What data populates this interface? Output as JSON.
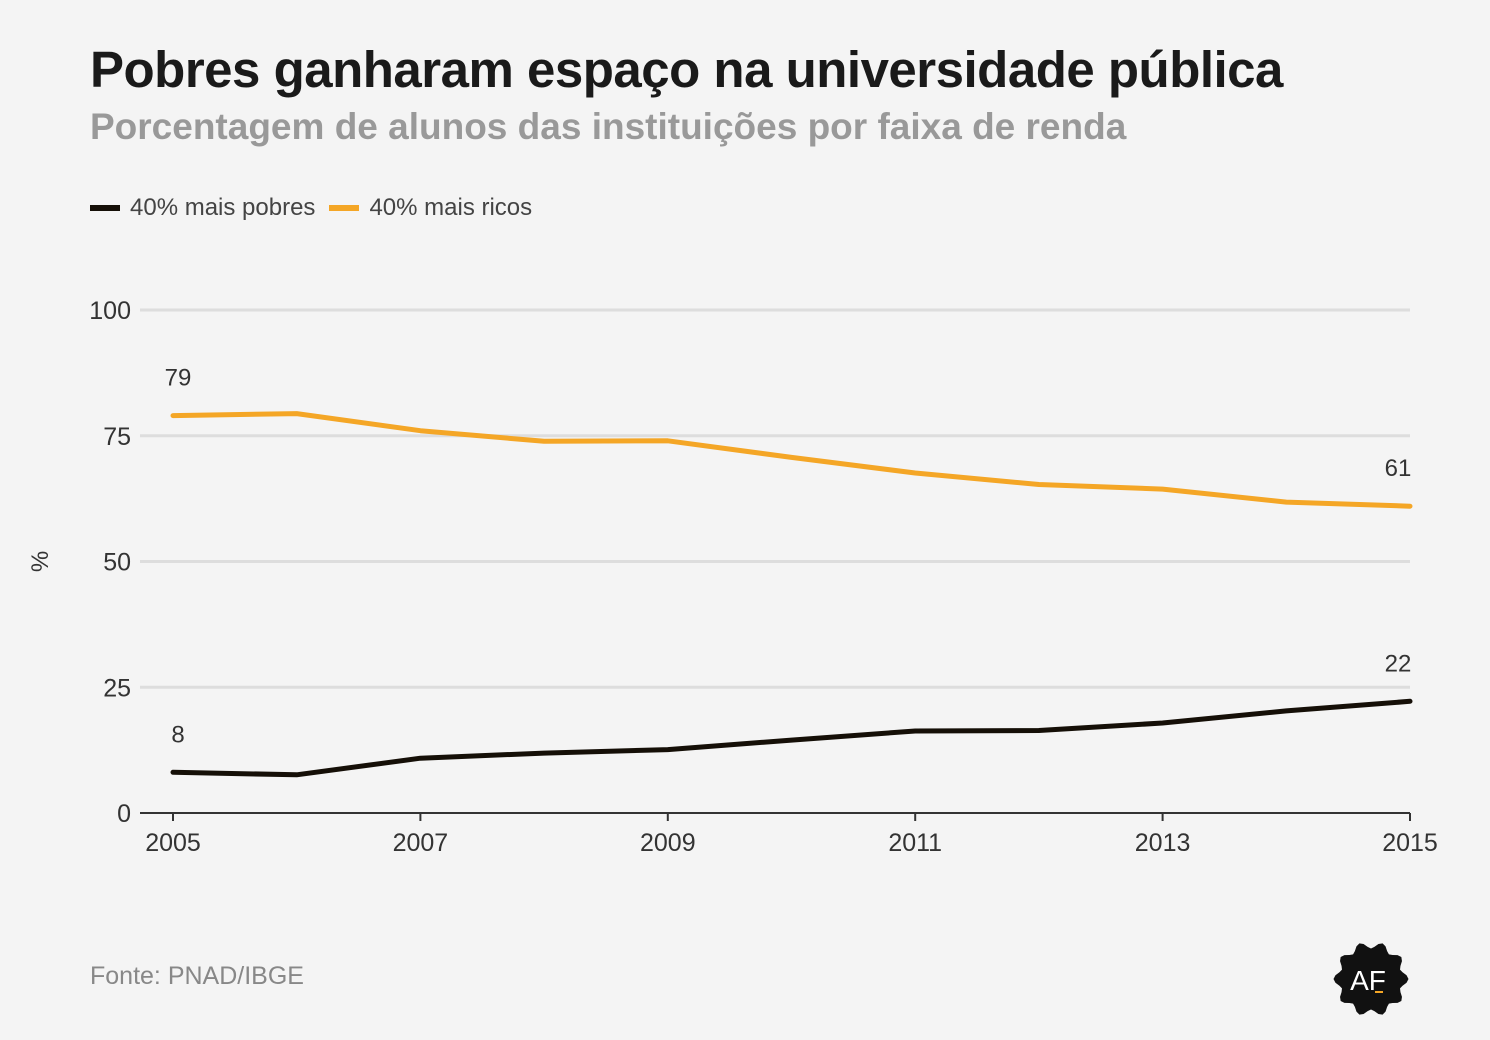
{
  "header": {
    "title": "Pobres ganharam espaço na universidade pública",
    "subtitle": "Porcentagem de alunos das instituições por faixa de renda"
  },
  "footer": {
    "source": "Fonte: PNAD/IBGE",
    "logo_text": "AF"
  },
  "colors": {
    "background": "#f4f4f4",
    "gridline": "#dddddd",
    "axis": "#333333"
  },
  "chart_data": {
    "type": "line",
    "title": "Pobres ganharam espaço na universidade pública",
    "subtitle": "Porcentagem de alunos das instituições por faixa de renda",
    "xlabel": "",
    "ylabel": "%",
    "x": [
      2005,
      2006,
      2007,
      2008,
      2009,
      2010,
      2011,
      2012,
      2013,
      2014,
      2015
    ],
    "xticks": [
      2005,
      2007,
      2009,
      2011,
      2013,
      2015
    ],
    "yticks": [
      0,
      25,
      50,
      75,
      100
    ],
    "xlim": [
      2005,
      2015
    ],
    "ylim": [
      0,
      100
    ],
    "grid": true,
    "legend_position": "top-left",
    "series": [
      {
        "name": "40% mais pobres",
        "color": "#150f07",
        "values": [
          8.1,
          7.6,
          10.9,
          11.9,
          12.6,
          14.5,
          16.3,
          16.4,
          17.9,
          20.3,
          22.2
        ],
        "end_labels": [
          "8",
          "22"
        ]
      },
      {
        "name": "40% mais ricos",
        "color": "#f4a626",
        "values": [
          79.0,
          79.4,
          76.0,
          73.9,
          74.0,
          70.7,
          67.6,
          65.3,
          64.4,
          61.8,
          61.0
        ],
        "end_labels": [
          "79",
          "61"
        ]
      }
    ]
  }
}
